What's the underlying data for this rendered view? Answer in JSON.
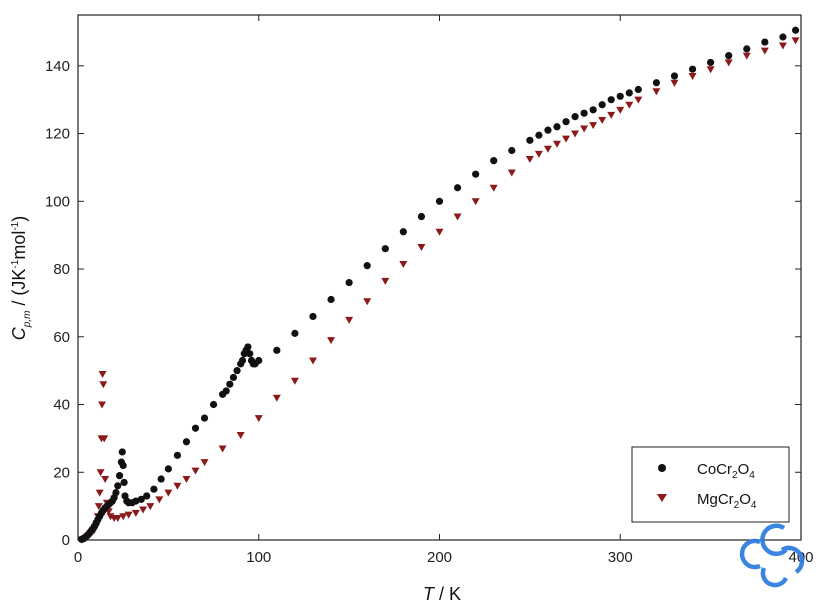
{
  "chart_data": {
    "type": "scatter",
    "xlabel_parts": {
      "T": "T",
      "rest": " / K"
    },
    "ylabel_parts": {
      "C": "C",
      "sub": "p,m",
      "rest": " / (JK",
      "sup1": "-1",
      "mol": "mol",
      "sup2": "-1",
      "close": ")"
    },
    "xlim": [
      0,
      400
    ],
    "ylim": [
      0,
      155
    ],
    "xticks": [
      0,
      100,
      200,
      300,
      400
    ],
    "yticks": [
      0,
      20,
      40,
      60,
      80,
      100,
      120,
      140
    ],
    "xtick_labels": [
      "0",
      "100",
      "200",
      "300",
      "400"
    ],
    "ytick_labels": [
      "0",
      "20",
      "40",
      "60",
      "80",
      "100",
      "120",
      "140"
    ],
    "grid": false,
    "legend_position": "bottom-right",
    "series": [
      {
        "name": "CoCr2O4",
        "name_parts": {
          "a": "CoCr",
          "s1": "2",
          "b": "O",
          "s2": "4"
        },
        "marker": "circle",
        "color": "#111111",
        "x": [
          2,
          3,
          4,
          5,
          6,
          7,
          8,
          9,
          10,
          11,
          12,
          13,
          14,
          15,
          16,
          17,
          18,
          19,
          20,
          21,
          22,
          23,
          24,
          24.5,
          25,
          25.5,
          26,
          27,
          28,
          30,
          32,
          35,
          38,
          42,
          46,
          50,
          55,
          60,
          65,
          70,
          75,
          80,
          82,
          84,
          86,
          88,
          90,
          91,
          92,
          93,
          94,
          95,
          96,
          97,
          98,
          100,
          110,
          120,
          130,
          140,
          150,
          160,
          170,
          180,
          190,
          200,
          210,
          220,
          230,
          240,
          250,
          255,
          260,
          265,
          270,
          275,
          280,
          285,
          290,
          295,
          300,
          305,
          310,
          320,
          330,
          340,
          350,
          360,
          370,
          380,
          390,
          397
        ],
        "y": [
          0.2,
          0.4,
          0.8,
          1.2,
          1.8,
          2.5,
          3.2,
          4,
          5,
          6,
          7,
          8,
          8.8,
          9.5,
          10,
          10.5,
          11,
          11.5,
          12.5,
          14,
          16,
          19,
          23,
          26,
          22,
          17,
          13,
          11.5,
          11,
          11,
          11.5,
          12,
          13,
          15,
          18,
          21,
          25,
          29,
          33,
          36,
          40,
          43,
          44,
          46,
          48,
          50,
          52,
          53,
          55,
          56,
          57,
          55,
          53,
          52,
          52,
          53,
          56,
          61,
          66,
          71,
          76,
          81,
          86,
          91,
          95.5,
          100,
          104,
          108,
          112,
          115,
          118,
          119.5,
          121,
          122,
          123.5,
          125,
          126,
          127,
          128.5,
          130,
          131,
          132,
          133,
          135,
          137,
          139,
          141,
          143,
          145,
          147,
          148.5,
          150.5
        ]
      },
      {
        "name": "MgCr2O4",
        "name_parts": {
          "a": "MgCr",
          "s1": "2",
          "b": "O",
          "s2": "4"
        },
        "marker": "triangle-down",
        "color": "#8b1a1a",
        "x": [
          2,
          3,
          4,
          5,
          6,
          7,
          8,
          9,
          10,
          10.5,
          11,
          11.5,
          12,
          12.5,
          13,
          13.3,
          13.6,
          14,
          14.5,
          15,
          16,
          17,
          18,
          20,
          22,
          25,
          28,
          32,
          36,
          40,
          45,
          50,
          55,
          60,
          65,
          70,
          80,
          90,
          100,
          110,
          120,
          130,
          140,
          150,
          160,
          170,
          180,
          190,
          200,
          210,
          220,
          230,
          240,
          250,
          255,
          260,
          265,
          270,
          275,
          280,
          285,
          290,
          295,
          300,
          305,
          310,
          320,
          330,
          340,
          350,
          360,
          370,
          380,
          390,
          397
        ],
        "y": [
          0.1,
          0.3,
          0.6,
          1,
          1.5,
          2,
          2.5,
          3,
          4,
          5,
          7,
          10,
          14,
          20,
          30,
          40,
          49,
          46,
          30,
          18,
          11,
          8.5,
          7,
          6.5,
          6.5,
          7,
          7.5,
          8,
          9,
          10,
          12,
          14,
          16,
          18,
          20.5,
          23,
          27,
          31,
          36,
          42,
          47,
          53,
          59,
          65,
          70.5,
          76.5,
          81.5,
          86.5,
          91,
          95.5,
          100,
          104,
          108.5,
          112.5,
          114,
          115.5,
          117,
          118.5,
          120,
          121.5,
          122.5,
          124,
          125.5,
          127,
          128.5,
          130,
          132.5,
          135,
          137,
          139,
          141,
          143,
          144.5,
          146,
          147.5
        ]
      }
    ]
  }
}
